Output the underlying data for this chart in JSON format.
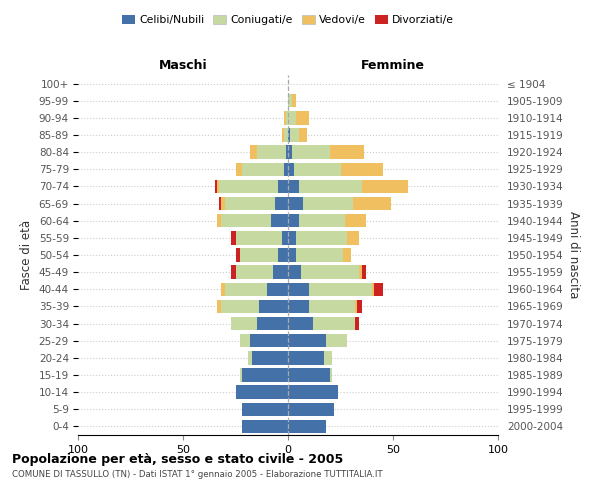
{
  "age_groups": [
    "0-4",
    "5-9",
    "10-14",
    "15-19",
    "20-24",
    "25-29",
    "30-34",
    "35-39",
    "40-44",
    "45-49",
    "50-54",
    "55-59",
    "60-64",
    "65-69",
    "70-74",
    "75-79",
    "80-84",
    "85-89",
    "90-94",
    "95-99",
    "100+"
  ],
  "birth_years": [
    "2000-2004",
    "1995-1999",
    "1990-1994",
    "1985-1989",
    "1980-1984",
    "1975-1979",
    "1970-1974",
    "1965-1969",
    "1960-1964",
    "1955-1959",
    "1950-1954",
    "1945-1949",
    "1940-1944",
    "1935-1939",
    "1930-1934",
    "1925-1929",
    "1920-1924",
    "1915-1919",
    "1910-1914",
    "1905-1909",
    "≤ 1904"
  ],
  "colors": {
    "celibi": "#4472a8",
    "coniugati": "#c5d9a0",
    "vedovi": "#f0c060",
    "divorziati": "#cc2222"
  },
  "maschi": {
    "celibi": [
      22,
      22,
      25,
      22,
      17,
      18,
      15,
      14,
      10,
      7,
      5,
      3,
      8,
      6,
      5,
      2,
      1,
      0,
      0,
      0,
      0
    ],
    "coniugati": [
      0,
      0,
      0,
      1,
      2,
      5,
      12,
      18,
      20,
      18,
      18,
      22,
      24,
      24,
      28,
      20,
      14,
      2,
      1,
      0,
      0
    ],
    "vedovi": [
      0,
      0,
      0,
      0,
      0,
      0,
      0,
      2,
      2,
      0,
      0,
      0,
      2,
      2,
      1,
      3,
      3,
      1,
      1,
      0,
      0
    ],
    "divorziati": [
      0,
      0,
      0,
      0,
      0,
      0,
      0,
      0,
      0,
      2,
      2,
      2,
      0,
      1,
      1,
      0,
      0,
      0,
      0,
      0,
      0
    ]
  },
  "femmine": {
    "celibi": [
      18,
      22,
      24,
      20,
      17,
      18,
      12,
      10,
      10,
      6,
      4,
      4,
      5,
      7,
      5,
      3,
      2,
      1,
      0,
      0,
      0
    ],
    "coniugati": [
      0,
      0,
      0,
      1,
      4,
      10,
      20,
      22,
      30,
      28,
      22,
      24,
      22,
      24,
      30,
      22,
      18,
      4,
      4,
      2,
      0
    ],
    "vedovi": [
      0,
      0,
      0,
      0,
      0,
      0,
      0,
      1,
      1,
      1,
      4,
      6,
      10,
      18,
      22,
      20,
      16,
      4,
      6,
      2,
      0
    ],
    "divorziati": [
      0,
      0,
      0,
      0,
      0,
      0,
      2,
      2,
      4,
      2,
      0,
      0,
      0,
      0,
      0,
      0,
      0,
      0,
      0,
      0,
      0
    ]
  },
  "xlim": 100,
  "title": "Popolazione per età, sesso e stato civile - 2005",
  "subtitle": "COMUNE DI TASSULLO (TN) - Dati ISTAT 1° gennaio 2005 - Elaborazione TUTTITALIA.IT",
  "ylabel_left": "Fasce di età",
  "ylabel_right": "Anni di nascita",
  "xlabel_left": "Maschi",
  "xlabel_right": "Femmine"
}
